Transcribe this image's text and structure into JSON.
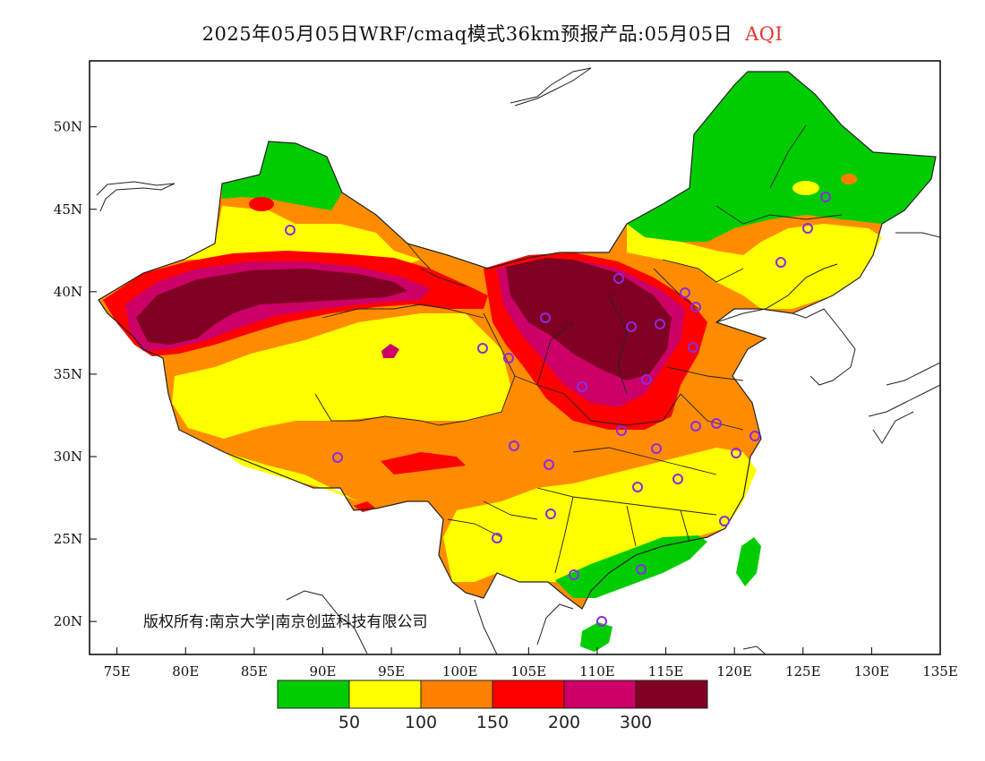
{
  "header": {
    "title": "2025年05月05日WRF/cmaq模式36km预报产品:05月05日",
    "variable": "AQI"
  },
  "footer": {
    "copyright": "版权所有:南京大学|南京创蓝科技有限公司"
  },
  "map": {
    "lon_range": [
      73,
      135
    ],
    "lat_range": [
      18,
      54
    ],
    "x_ticks": [
      "75E",
      "80E",
      "85E",
      "90E",
      "95E",
      "100E",
      "105E",
      "110E",
      "115E",
      "120E",
      "125E",
      "130E",
      "135E"
    ],
    "y_ticks": [
      "20N",
      "25N",
      "30N",
      "35N",
      "40N",
      "45N",
      "50N"
    ]
  },
  "legend": {
    "colors": [
      "#00cc00",
      "#ffff00",
      "#ff8000",
      "#ff0000",
      "#cc0066",
      "#7f0022"
    ],
    "labels": [
      "50",
      "100",
      "150",
      "200",
      "300"
    ]
  }
}
